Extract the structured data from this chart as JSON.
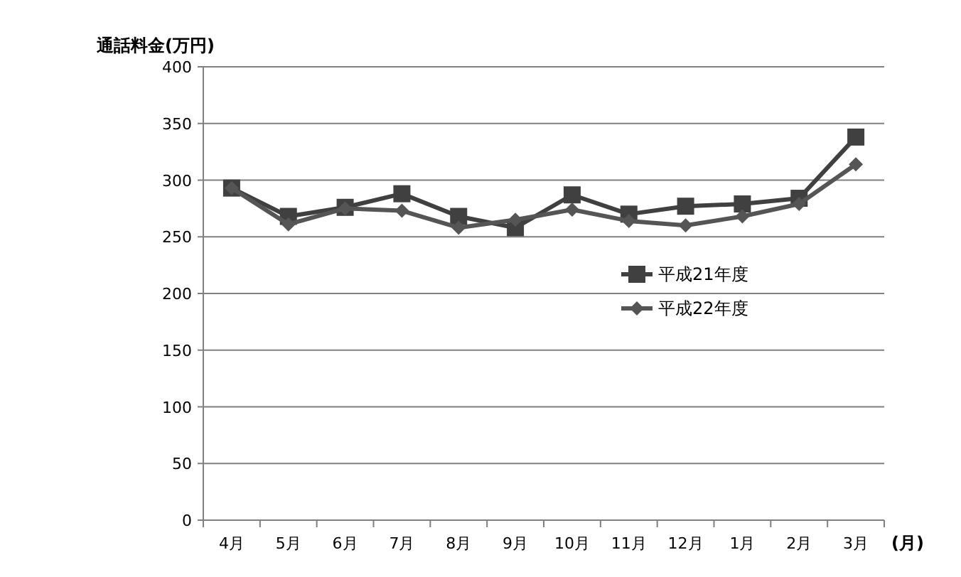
{
  "chart_data": {
    "type": "line",
    "ylabel": "通話料金(万円)",
    "xlabel": "(月)",
    "categories": [
      "4月",
      "5月",
      "6月",
      "7月",
      "8月",
      "9月",
      "10月",
      "11月",
      "12月",
      "1月",
      "2月",
      "3月"
    ],
    "ylim": [
      0,
      400
    ],
    "yticks": [
      0,
      50,
      100,
      150,
      200,
      250,
      300,
      350,
      400
    ],
    "grid": "y",
    "legend": "right",
    "series": [
      {
        "name": "平成21年度",
        "color": "#404040",
        "marker": "square",
        "values": [
          293,
          268,
          276,
          288,
          268,
          258,
          287,
          270,
          277,
          279,
          284,
          338
        ]
      },
      {
        "name": "平成22年度",
        "color": "#555555",
        "marker": "diamond",
        "values": [
          293,
          261,
          275,
          273,
          258,
          265,
          274,
          264,
          260,
          268,
          279,
          314
        ]
      }
    ]
  }
}
